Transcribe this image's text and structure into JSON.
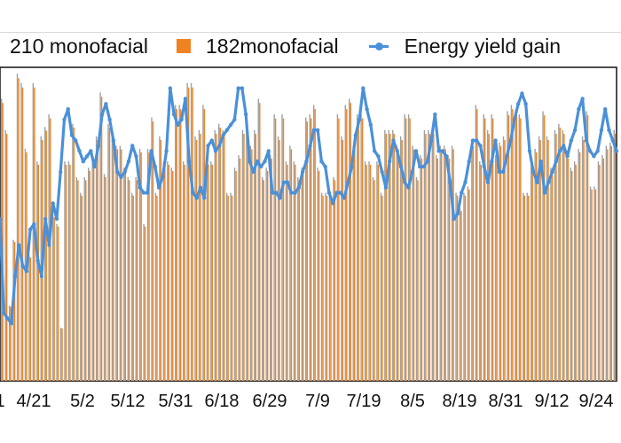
{
  "chart_data": {
    "type": "bar-line",
    "legend": [
      {
        "label": "210 monofacial",
        "color": "#a0a0a0",
        "kind": "bar"
      },
      {
        "label": "182monofacial",
        "color": "#f08221",
        "kind": "bar"
      },
      {
        "label": "Energy yield gain",
        "color": "#4a90d9",
        "kind": "line"
      }
    ],
    "x_ticks": [
      "1",
      "4/21",
      "5/2",
      "5/12",
      "5/31",
      "6/18",
      "6/29",
      "7/9",
      "7/19",
      "8/5",
      "8/19",
      "8/31",
      "9/12",
      "9/24"
    ],
    "bar_values": [
      90,
      80,
      24,
      45,
      98,
      95,
      74,
      40,
      95,
      70,
      78,
      81,
      85,
      53,
      50,
      17,
      70,
      70,
      82,
      65,
      60,
      65,
      68,
      70,
      78,
      92,
      66,
      82,
      79,
      75,
      75,
      68,
      65,
      60,
      65,
      74,
      50,
      74,
      84,
      60,
      78,
      70,
      70,
      68,
      88,
      88,
      70,
      95,
      95,
      78,
      80,
      88,
      70,
      70,
      80,
      82,
      80,
      60,
      60,
      68,
      72,
      80,
      80,
      75,
      80,
      90,
      65,
      68,
      72,
      85,
      78,
      85,
      70,
      75,
      70,
      65,
      68,
      84,
      85,
      88,
      68,
      60,
      60,
      60,
      65,
      85,
      78,
      88,
      90,
      75,
      85,
      85,
      70,
      70,
      65,
      70,
      60,
      80,
      80,
      80,
      75,
      78,
      85,
      85,
      75,
      65,
      72,
      80,
      80,
      80,
      72,
      75,
      75,
      72,
      75,
      60,
      55,
      60,
      62,
      76,
      88,
      70,
      85,
      80,
      85,
      72,
      76,
      78,
      86,
      88,
      86,
      85,
      60,
      60,
      70,
      74,
      78,
      86,
      78,
      68,
      80,
      82,
      80,
      72,
      68,
      70,
      74,
      78,
      86,
      62,
      62,
      70,
      72,
      75,
      76,
      80
    ],
    "line_values": [
      31,
      13,
      12,
      11,
      20,
      26,
      22,
      21,
      29,
      30,
      23,
      20,
      31,
      26,
      34,
      31,
      40,
      50,
      52,
      47,
      46,
      44,
      42,
      43,
      44,
      41,
      45,
      51,
      53,
      50,
      46,
      40,
      39,
      40,
      42,
      45,
      43,
      37,
      36,
      36,
      44,
      41,
      37,
      39,
      44,
      56,
      51,
      49,
      50,
      54,
      42,
      36,
      35,
      37,
      35,
      45,
      46,
      44,
      45,
      47,
      48,
      49,
      50,
      56,
      56,
      51,
      42,
      40,
      42,
      41,
      42,
      44,
      36,
      36,
      35,
      38,
      38,
      36,
      36,
      37,
      40,
      42,
      45,
      48,
      48,
      42,
      41,
      36,
      34,
      36,
      36,
      35,
      38,
      41,
      47,
      50,
      56,
      52,
      49,
      44,
      43,
      40,
      37,
      42,
      46,
      44,
      41,
      38,
      37,
      40,
      44,
      41,
      41,
      42,
      46,
      51,
      44,
      44,
      43,
      38,
      31,
      32,
      36,
      38,
      42,
      46,
      46,
      45,
      41,
      38,
      42,
      46,
      40,
      40,
      43,
      46,
      50,
      53,
      55,
      53,
      44,
      40,
      38,
      42,
      36,
      38,
      40,
      42,
      44,
      45,
      43,
      46,
      48,
      52,
      54,
      46,
      44,
      43,
      44,
      48,
      52,
      48,
      46,
      44
    ]
  }
}
